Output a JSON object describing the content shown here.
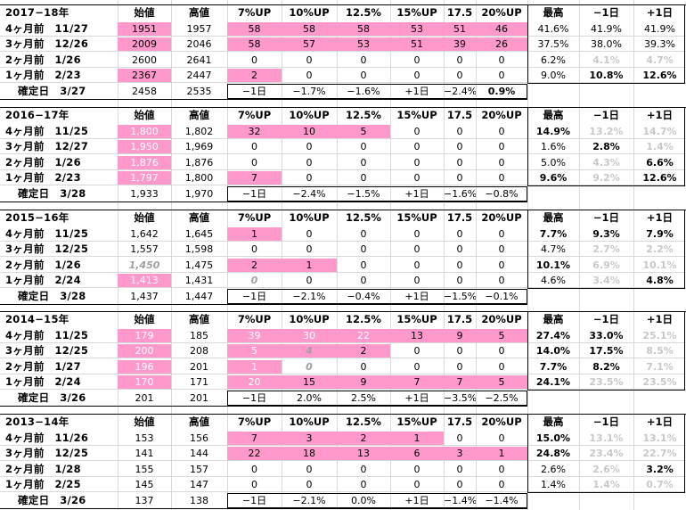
{
  "columns": [
    "",
    "始値",
    "高値",
    "7%UP",
    "10%UP",
    "12.5%",
    "15%UP",
    "17.5",
    "20%UP",
    "最高",
    "−1日",
    "+1日"
  ],
  "blocks": [
    {
      "title": "2017−18年",
      "rows": [
        {
          "label": "4ヶ月前　11/27",
          "cells": [
            "1951",
            "1957",
            "58",
            "58",
            "58",
            "53",
            "51",
            "46",
            "41.6%",
            "41.9%",
            "41.9%"
          ]
        },
        {
          "label": "3ヶ月前　12/26",
          "cells": [
            "2009",
            "2046",
            "58",
            "57",
            "53",
            "51",
            "39",
            "26",
            "37.5%",
            "38.0%",
            "39.3%"
          ]
        },
        {
          "label": "2ヶ月前　1/26",
          "cells": [
            "2600",
            "2641",
            "0",
            "0",
            "0",
            "0",
            "0",
            "0",
            "6.2%",
            "4.1%",
            "4.7%"
          ]
        },
        {
          "label": "1ヶ月前　2/23",
          "cells": [
            "2367",
            "2447",
            "2",
            "0",
            "0",
            "0",
            "0",
            "0",
            "9.0%",
            "10.8%",
            "12.6%"
          ]
        }
      ],
      "confirm": {
        "label": "確定日　3/27",
        "cells": [
          "2458",
          "2535",
          "−1日",
          "−1.7%",
          "−1.6%",
          "+1日",
          "−2.4%",
          "0.9%"
        ]
      }
    },
    {
      "title": "2016−17年",
      "rows": [
        {
          "label": "4ヶ月前　11/25",
          "cells": [
            "1,800",
            "1,802",
            "32",
            "10",
            "5",
            "0",
            "0",
            "0",
            "14.9%",
            "13.2%",
            "14.7%"
          ]
        },
        {
          "label": "3ヶ月前　12/27",
          "cells": [
            "1,950",
            "1,969",
            "0",
            "0",
            "0",
            "0",
            "0",
            "0",
            "1.6%",
            "2.8%",
            "1.4%"
          ]
        },
        {
          "label": "2ヶ月前　1/26",
          "cells": [
            "1,876",
            "1,876",
            "0",
            "0",
            "0",
            "0",
            "0",
            "0",
            "5.0%",
            "4.3%",
            "6.6%"
          ]
        },
        {
          "label": "1ヶ月前　2/23",
          "cells": [
            "1,797",
            "1,800",
            "7",
            "0",
            "0",
            "0",
            "0",
            "0",
            "9.6%",
            "9.2%",
            "12.6%"
          ]
        }
      ],
      "confirm": {
        "label": "確定日　3/28",
        "cells": [
          "1,933",
          "1,970",
          "−1日",
          "−2.4%",
          "−1.5%",
          "+1日",
          "−1.6%",
          "−0.8%"
        ]
      }
    },
    {
      "title": "2015−16年",
      "rows": [
        {
          "label": "4ヶ月前　11/25",
          "cells": [
            "1,642",
            "1,645",
            "1",
            "0",
            "0",
            "0",
            "0",
            "0",
            "7.7%",
            "9.3%",
            "7.9%"
          ]
        },
        {
          "label": "3ヶ月前　12/25",
          "cells": [
            "1,557",
            "1,598",
            "0",
            "0",
            "0",
            "0",
            "0",
            "0",
            "4.7%",
            "2.7%",
            "2.2%"
          ]
        },
        {
          "label": "2ヶ月前　1/26",
          "cells": [
            "1,450",
            "1,475",
            "2",
            "1",
            "0",
            "0",
            "0",
            "0",
            "10.1%",
            "6.9%",
            "10.1%"
          ]
        },
        {
          "label": "1ヶ月前　2/24",
          "cells": [
            "1,413",
            "1,431",
            "0",
            "0",
            "0",
            "0",
            "0",
            "0",
            "4.6%",
            "3.4%",
            "4.8%"
          ]
        }
      ],
      "confirm": {
        "label": "確定日　3/28",
        "cells": [
          "1,437",
          "1,447",
          "−1日",
          "−2.1%",
          "−0.4%",
          "+1日",
          "−1.5%",
          "−0.1%"
        ]
      }
    },
    {
      "title": "2014−15年",
      "rows": [
        {
          "label": "4ヶ月前　11/25",
          "cells": [
            "179",
            "185",
            "39",
            "30",
            "22",
            "13",
            "9",
            "5",
            "27.4%",
            "33.0%",
            "25.1%"
          ]
        },
        {
          "label": "3ヶ月前　12/25",
          "cells": [
            "200",
            "208",
            "5",
            "4",
            "2",
            "0",
            "0",
            "0",
            "14.0%",
            "17.5%",
            "8.5%"
          ]
        },
        {
          "label": "2ヶ月前　1/27",
          "cells": [
            "196",
            "201",
            "1",
            "0",
            "0",
            "0",
            "0",
            "0",
            "7.7%",
            "8.2%",
            "7.1%"
          ]
        },
        {
          "label": "1ヶ月前　2/24",
          "cells": [
            "170",
            "171",
            "20",
            "15",
            "9",
            "7",
            "7",
            "5",
            "24.1%",
            "23.5%",
            "23.5%"
          ]
        }
      ],
      "confirm": {
        "label": "確定日　3/26",
        "cells": [
          "201",
          "201",
          "−1日",
          "2.0%",
          "2.5%",
          "+1日",
          "−3.5%",
          "−2.5%"
        ]
      }
    },
    {
      "title": "2013−14年",
      "rows": [
        {
          "label": "4ヶ月前　11/26",
          "cells": [
            "153",
            "156",
            "7",
            "3",
            "2",
            "1",
            "0",
            "0",
            "15.0%",
            "13.1%",
            "13.1%"
          ]
        },
        {
          "label": "3ヶ月前　12/25",
          "cells": [
            "141",
            "144",
            "22",
            "18",
            "13",
            "6",
            "3",
            "1",
            "24.8%",
            "23.4%",
            "22.7%"
          ]
        },
        {
          "label": "2ヶ月前　1/28",
          "cells": [
            "155",
            "157",
            "0",
            "0",
            "0",
            "0",
            "0",
            "0",
            "2.6%",
            "2.6%",
            "3.2%"
          ]
        },
        {
          "label": "1ヶ月前　2/25",
          "cells": [
            "145",
            "147",
            "0",
            "0",
            "0",
            "0",
            "0",
            "0",
            "1.4%",
            "1.4%",
            "0.7%"
          ]
        }
      ],
      "confirm": {
        "label": "確定日　3/26",
        "cells": [
          "137",
          "138",
          "−1日",
          "−2.1%",
          "0.0%",
          "+1日",
          "−1.4%",
          "−1.4%"
        ]
      }
    }
  ]
}
